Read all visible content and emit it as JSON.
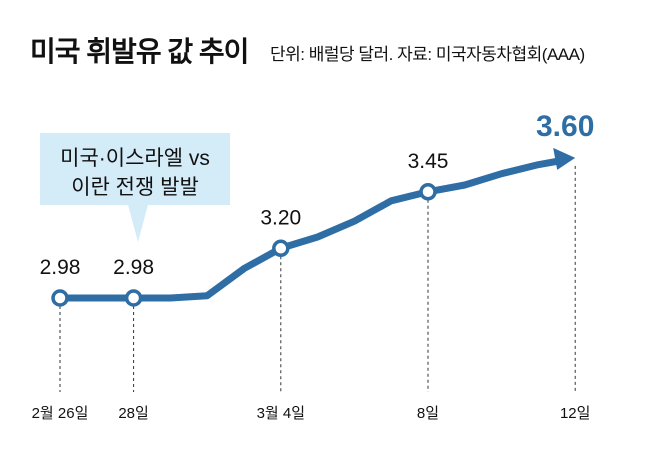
{
  "title": "미국 휘발유 값 추이",
  "subtitle": "단위: 배럴당 달러. 자료: 미국자동차협회(AAA)",
  "annotation": {
    "line1": "미국·이스라엘 vs",
    "line2": "이란 전쟁 발발"
  },
  "colors": {
    "line": "#2f6ea5",
    "bubble": "#d4ebf8",
    "highlight": "#2f6ea5"
  },
  "chart_data": {
    "type": "line",
    "title": "미국 휘발유 값 추이",
    "unit": "배럴당 달러",
    "x_day_index": [
      0,
      1,
      2,
      3,
      4,
      5,
      6,
      7,
      8,
      9,
      10,
      11,
      12,
      13,
      14
    ],
    "values": [
      2.98,
      2.98,
      2.98,
      2.98,
      2.99,
      3.11,
      3.2,
      3.25,
      3.32,
      3.41,
      3.45,
      3.48,
      3.53,
      3.57,
      3.6
    ],
    "tick_labels": [
      {
        "day": 0,
        "label": "2월 26일"
      },
      {
        "day": 2,
        "label": "28일"
      },
      {
        "day": 6,
        "label": "3월 4일"
      },
      {
        "day": 10,
        "label": "8일"
      },
      {
        "day": 14,
        "label": "12일"
      }
    ],
    "data_labels": [
      {
        "day": 0,
        "label": "2.98"
      },
      {
        "day": 2,
        "label": "2.98"
      },
      {
        "day": 6,
        "label": "3.20"
      },
      {
        "day": 10,
        "label": "3.45"
      },
      {
        "day": 14,
        "label": "3.60"
      }
    ],
    "ylim": [
      2.98,
      3.6
    ],
    "grid": false
  }
}
